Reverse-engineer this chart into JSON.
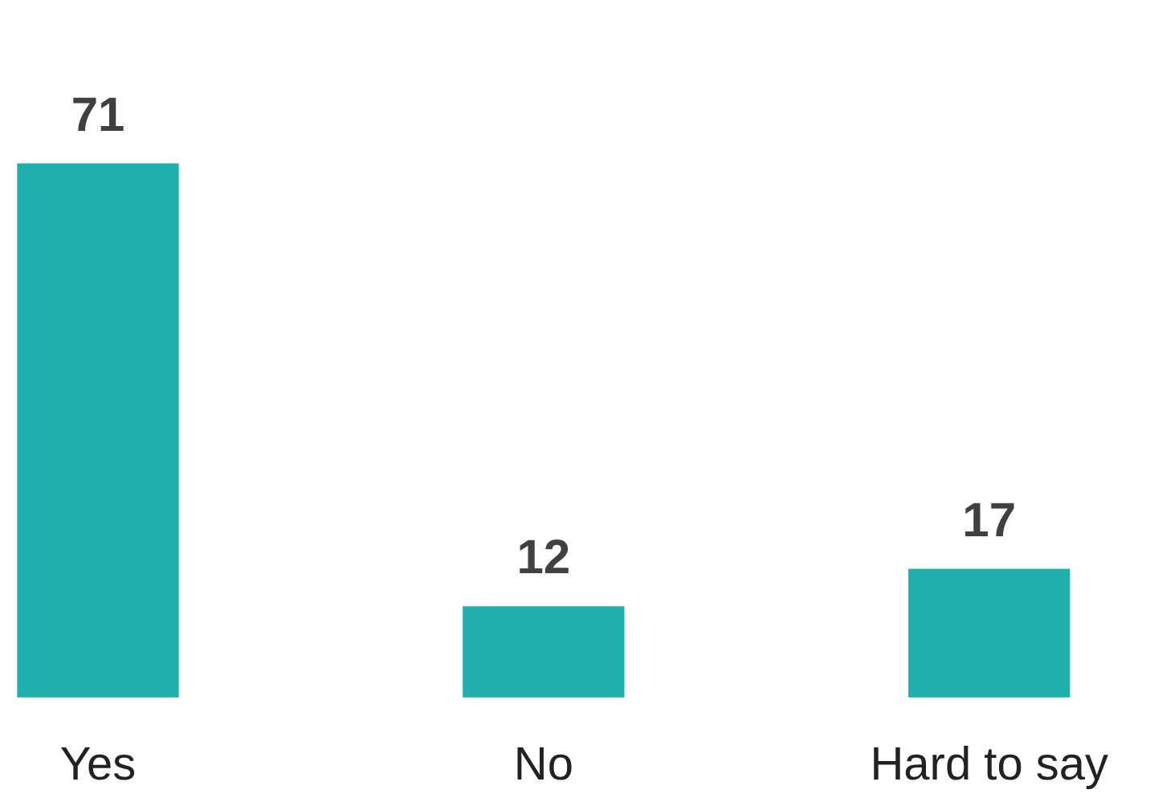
{
  "chart_data": {
    "type": "bar",
    "categories": [
      "Yes",
      "No",
      "Hard to say"
    ],
    "values": [
      71,
      12,
      17
    ],
    "color": "#1fb0ae",
    "data_labels": true,
    "grid": false,
    "legend": false
  }
}
